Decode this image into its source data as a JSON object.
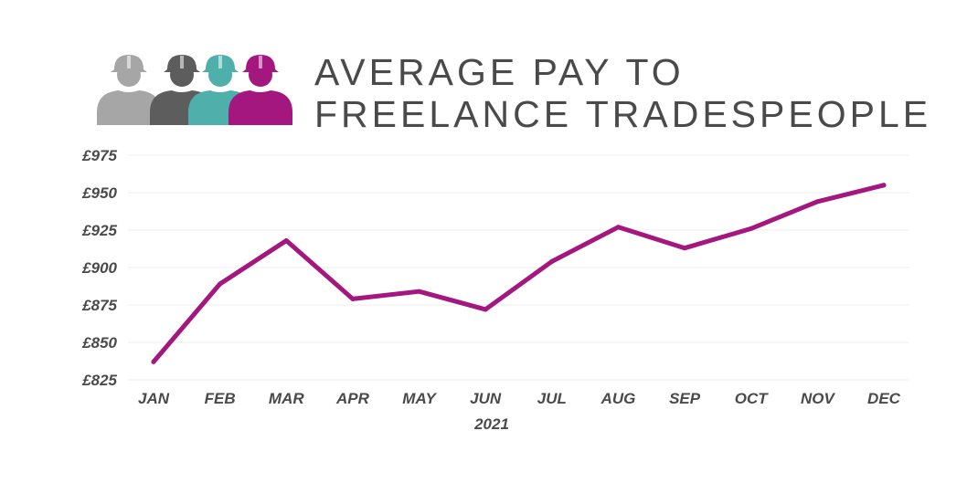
{
  "title": {
    "line1": "AVERAGE PAY TO",
    "line2": "FREELANCE TRADESPEOPLE"
  },
  "logo": {
    "icon": "tradespeople-hard-hat-icon",
    "colors": [
      "#a6a6a6",
      "#5d5d5d",
      "#4fafaa",
      "#a3177f"
    ]
  },
  "chart_data": {
    "type": "line",
    "title": "AVERAGE PAY TO FREELANCE TRADESPEOPLE",
    "xlabel": "2021",
    "ylabel": "",
    "categories": [
      "JAN",
      "FEB",
      "MAR",
      "APR",
      "MAY",
      "JUN",
      "JUL",
      "AUG",
      "SEP",
      "OCT",
      "NOV",
      "DEC"
    ],
    "series": [
      {
        "values": [
          837,
          889,
          918,
          879,
          884,
          872,
          904,
          927,
          913,
          926,
          944,
          955
        ]
      }
    ],
    "y_ticks": [
      825,
      850,
      875,
      900,
      925,
      950,
      975
    ],
    "y_tick_labels": [
      "£825",
      "£850",
      "£875",
      "£900",
      "£925",
      "£950",
      "£975"
    ],
    "ylim": [
      825,
      975
    ],
    "grid": true,
    "legend": "none",
    "line_color": "#a3177f",
    "grid_color": "#eeeeee",
    "text_color": "#4a4a4a"
  }
}
